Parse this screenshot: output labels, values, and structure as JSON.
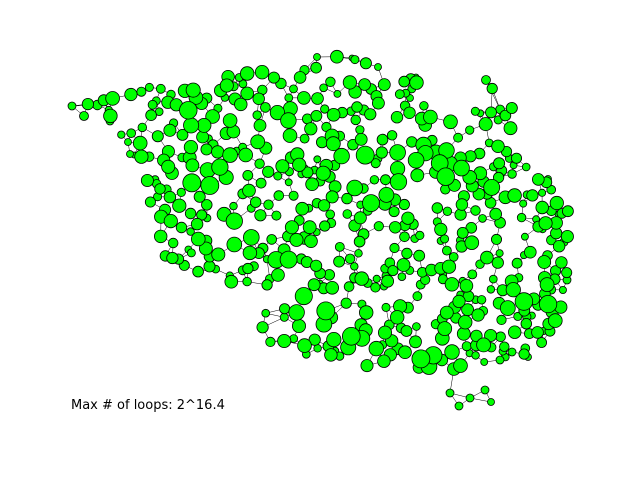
{
  "caption": "Max # of loops: 2^16.4",
  "style": {
    "node_fill": "#00ff00",
    "node_stroke": "#000000",
    "edge_color": "#000000",
    "background": "#ffffff"
  }
}
